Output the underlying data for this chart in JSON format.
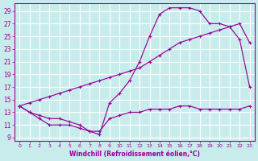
{
  "xlabel": "Windchill (Refroidissement éolien,°C)",
  "bg_color": "#c8ecec",
  "grid_color": "#b0d8d8",
  "line_color": "#990099",
  "xlim": [
    -0.5,
    23.5
  ],
  "ylim": [
    8.5,
    30.2
  ],
  "xticks": [
    0,
    1,
    2,
    3,
    4,
    5,
    6,
    7,
    8,
    9,
    10,
    11,
    12,
    13,
    14,
    15,
    16,
    17,
    18,
    19,
    20,
    21,
    22,
    23
  ],
  "yticks": [
    9,
    11,
    13,
    15,
    17,
    19,
    21,
    23,
    25,
    27,
    29
  ],
  "curve1_x": [
    0,
    1,
    2,
    3,
    4,
    5,
    6,
    7,
    8,
    9,
    10,
    11,
    12,
    13,
    14,
    15,
    16,
    17,
    18,
    19,
    20,
    21,
    22,
    23
  ],
  "curve1_y": [
    14,
    13,
    12.5,
    12,
    12,
    11.5,
    11,
    10,
    9.5,
    14.5,
    16,
    18,
    21,
    25,
    28.5,
    29.5,
    29.5,
    29.5,
    29,
    27,
    27,
    26.5,
    24.5,
    17
  ],
  "curve2_x": [
    0,
    1,
    2,
    3,
    4,
    5,
    6,
    7,
    8,
    9,
    10,
    11,
    12,
    13,
    14,
    15,
    16,
    17,
    18,
    19,
    20,
    21,
    22,
    23
  ],
  "curve2_y": [
    14,
    14.5,
    15,
    15.5,
    16,
    16.5,
    17,
    17.5,
    18,
    18.5,
    19,
    19.5,
    20,
    21,
    22,
    23,
    24,
    24.5,
    25,
    25.5,
    26,
    26.5,
    27,
    24
  ],
  "curve3_x": [
    0,
    1,
    2,
    3,
    4,
    5,
    6,
    7,
    8,
    9,
    10,
    11,
    12,
    13,
    14,
    15,
    16,
    17,
    18,
    19,
    20,
    21,
    22,
    23
  ],
  "curve3_y": [
    14,
    13,
    12,
    11,
    11,
    11,
    10.5,
    10,
    10,
    12,
    12.5,
    13,
    13,
    13.5,
    13.5,
    13.5,
    14,
    14,
    13.5,
    13.5,
    13.5,
    13.5,
    13.5,
    14
  ]
}
